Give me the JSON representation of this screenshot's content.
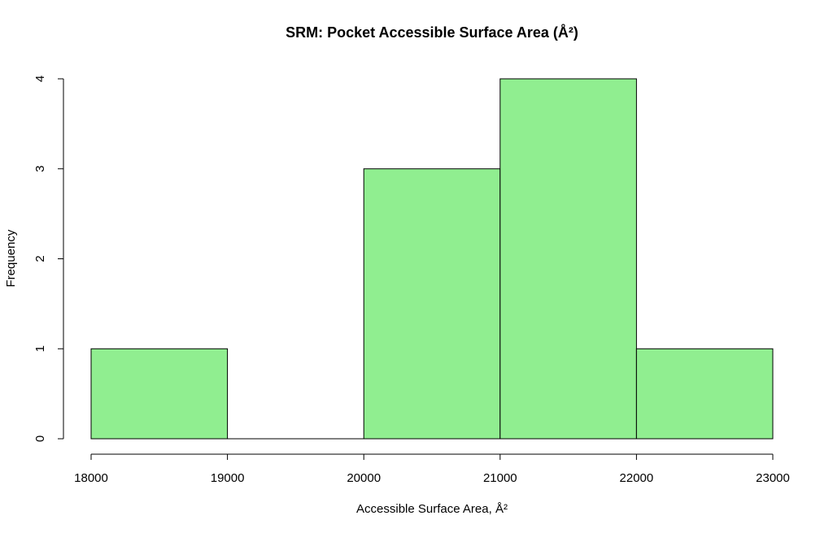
{
  "chart_data": {
    "type": "bar",
    "title": "SRM: Pocket Accessible Surface Area (Å²)",
    "xlabel": "Accessible Surface Area, Å²",
    "ylabel": "Frequency",
    "bins": [
      {
        "from": 18000,
        "to": 19000,
        "count": 1
      },
      {
        "from": 19000,
        "to": 20000,
        "count": 0
      },
      {
        "from": 20000,
        "to": 21000,
        "count": 3
      },
      {
        "from": 21000,
        "to": 22000,
        "count": 4
      },
      {
        "from": 22000,
        "to": 23000,
        "count": 1
      }
    ],
    "xlim": [
      18000,
      23000
    ],
    "ylim": [
      0,
      4
    ],
    "x_ticks": [
      "18000",
      "19000",
      "20000",
      "21000",
      "22000",
      "23000"
    ],
    "y_ticks": [
      "0",
      "1",
      "2",
      "3",
      "4"
    ],
    "bar_color": "#90ee90",
    "grid": false
  }
}
